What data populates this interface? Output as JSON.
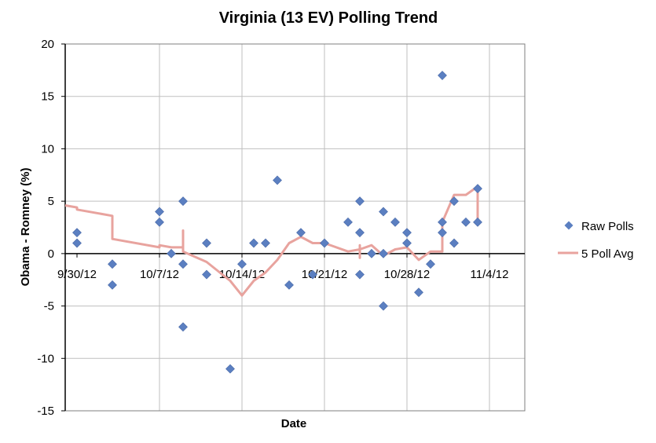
{
  "chart_data": {
    "type": "scatter",
    "title": "Virginia (13 EV) Polling Trend",
    "xlabel": "Date",
    "ylabel": "Obama - Romney (%)",
    "xlim": [
      "2012-09-29",
      "2012-11-07"
    ],
    "ylim": [
      -15,
      20
    ],
    "x_ticks": [
      {
        "date": "2012-09-30",
        "label": "9/30/12"
      },
      {
        "date": "2012-10-07",
        "label": "10/7/12"
      },
      {
        "date": "2012-10-14",
        "label": "10/14/12"
      },
      {
        "date": "2012-10-21",
        "label": "10/21/12"
      },
      {
        "date": "2012-10-28",
        "label": "10/28/12"
      },
      {
        "date": "2012-11-04",
        "label": "11/4/12"
      }
    ],
    "x_gridlines": [
      "2012-10-07",
      "2012-10-14",
      "2012-10-21",
      "2012-10-28",
      "2012-11-04",
      "2012-11-07"
    ],
    "y_ticks": [
      -15,
      -10,
      -5,
      0,
      5,
      10,
      15,
      20
    ],
    "grid": true,
    "legend_position": "right",
    "colors": {
      "raw_polls": "#5b7fc1",
      "avg": "#e8a39e",
      "axis": "#000000",
      "grid": "#bfbfbf"
    },
    "series": [
      {
        "name": "Raw Polls",
        "kind": "markers",
        "points": [
          [
            "2012-09-30",
            2
          ],
          [
            "2012-09-30",
            1
          ],
          [
            "2012-10-03",
            -1
          ],
          [
            "2012-10-03",
            -3
          ],
          [
            "2012-10-07",
            4
          ],
          [
            "2012-10-07",
            3
          ],
          [
            "2012-10-08",
            0
          ],
          [
            "2012-10-09",
            5
          ],
          [
            "2012-10-09",
            -1
          ],
          [
            "2012-10-09",
            -7
          ],
          [
            "2012-10-11",
            1
          ],
          [
            "2012-10-11",
            -2
          ],
          [
            "2012-10-13",
            -11
          ],
          [
            "2012-10-14",
            -1
          ],
          [
            "2012-10-15",
            1
          ],
          [
            "2012-10-16",
            1
          ],
          [
            "2012-10-17",
            7
          ],
          [
            "2012-10-18",
            -3
          ],
          [
            "2012-10-19",
            2
          ],
          [
            "2012-10-20",
            -2
          ],
          [
            "2012-10-21",
            1
          ],
          [
            "2012-10-23",
            3
          ],
          [
            "2012-10-24",
            5
          ],
          [
            "2012-10-24",
            2
          ],
          [
            "2012-10-24",
            -2
          ],
          [
            "2012-10-25",
            0
          ],
          [
            "2012-10-26",
            4
          ],
          [
            "2012-10-26",
            0
          ],
          [
            "2012-10-26",
            -5
          ],
          [
            "2012-10-27",
            3
          ],
          [
            "2012-10-28",
            2
          ],
          [
            "2012-10-28",
            1
          ],
          [
            "2012-10-29",
            -3.7
          ],
          [
            "2012-10-30",
            -1
          ],
          [
            "2012-10-31",
            17
          ],
          [
            "2012-10-31",
            3
          ],
          [
            "2012-10-31",
            2
          ],
          [
            "2012-11-01",
            5
          ],
          [
            "2012-11-01",
            1
          ],
          [
            "2012-11-02",
            3
          ],
          [
            "2012-11-03",
            6.2
          ],
          [
            "2012-11-03",
            3
          ]
        ]
      },
      {
        "name": "5 Poll Avg",
        "kind": "line",
        "points": [
          [
            "2012-09-29",
            4.6
          ],
          [
            "2012-09-30",
            4.4
          ],
          [
            "2012-09-30",
            4.2
          ],
          [
            "2012-10-03",
            3.6
          ],
          [
            "2012-10-03",
            1.4
          ],
          [
            "2012-10-07",
            0.6
          ],
          [
            "2012-10-07",
            0.8
          ],
          [
            "2012-10-08",
            0.6
          ],
          [
            "2012-10-09",
            0.6
          ],
          [
            "2012-10-09",
            2.2
          ],
          [
            "2012-10-09",
            0.2
          ],
          [
            "2012-10-11",
            -0.8
          ],
          [
            "2012-10-13",
            -2.6
          ],
          [
            "2012-10-14",
            -4
          ],
          [
            "2012-10-15",
            -2.6
          ],
          [
            "2012-10-16",
            -1.8
          ],
          [
            "2012-10-17",
            -0.6
          ],
          [
            "2012-10-18",
            1
          ],
          [
            "2012-10-19",
            1.6
          ],
          [
            "2012-10-20",
            1
          ],
          [
            "2012-10-21",
            1
          ],
          [
            "2012-10-23",
            0.2
          ],
          [
            "2012-10-24",
            0.4
          ],
          [
            "2012-10-24",
            0.8
          ],
          [
            "2012-10-24",
            -0.4
          ],
          [
            "2012-10-24",
            0.4
          ],
          [
            "2012-10-25",
            0.8
          ],
          [
            "2012-10-26",
            -0.2
          ],
          [
            "2012-10-27",
            0.4
          ],
          [
            "2012-10-28",
            0.6
          ],
          [
            "2012-10-29",
            -0.6
          ],
          [
            "2012-10-30",
            0.2
          ],
          [
            "2012-10-31",
            0.2
          ],
          [
            "2012-10-31",
            3
          ],
          [
            "2012-11-01",
            5.6
          ],
          [
            "2012-11-02",
            5.6
          ],
          [
            "2012-11-03",
            6.4
          ],
          [
            "2012-11-03",
            3
          ]
        ]
      }
    ]
  }
}
